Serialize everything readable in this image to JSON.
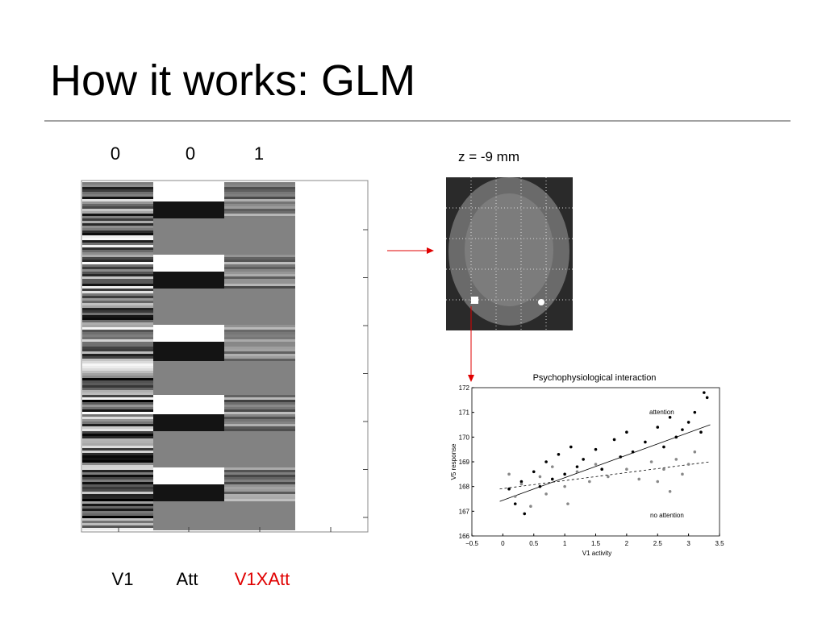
{
  "title": "How it works: GLM",
  "contrast": [
    0,
    0,
    1
  ],
  "regressors": [
    "V1",
    "Att",
    "V1XAtt"
  ],
  "slice_label": "z = -9 mm",
  "chart_data": {
    "type": "scatter",
    "title": "Psychophysiological interaction",
    "x_label": "V1 activity",
    "y_label": "V5 response",
    "xlim": [
      -0.5,
      3.5
    ],
    "ylim": [
      166,
      172
    ],
    "xticks": [
      {
        "value": -0.5,
        "label": "−0.5"
      },
      0,
      0.5,
      1,
      1.5,
      2,
      2.5,
      3,
      3.5
    ],
    "yticks": [
      166,
      167,
      168,
      169,
      170,
      171,
      172
    ],
    "series": [
      {
        "name": "attention",
        "color": "#000000",
        "x": [
          0.1,
          0.2,
          0.3,
          0.35,
          0.5,
          0.6,
          0.7,
          0.8,
          0.9,
          1.0,
          1.1,
          1.2,
          1.3,
          1.5,
          1.6,
          1.8,
          1.9,
          2.0,
          2.1,
          2.3,
          2.5,
          2.6,
          2.7,
          2.8,
          2.9,
          3.0,
          3.1,
          3.2,
          3.25,
          3.3
        ],
        "values": [
          167.9,
          167.3,
          168.2,
          166.9,
          168.6,
          168.0,
          169.0,
          168.3,
          169.3,
          168.5,
          169.6,
          168.8,
          169.1,
          169.5,
          168.7,
          169.9,
          169.2,
          170.2,
          169.4,
          169.8,
          170.4,
          169.6,
          170.8,
          170.0,
          170.3,
          170.6,
          171.0,
          170.2,
          171.8,
          171.6
        ],
        "trend": {
          "x": [
            -0.05,
            3.35
          ],
          "values": [
            167.4,
            170.5
          ],
          "dashed": false
        }
      },
      {
        "name": "no attention",
        "color": "#888888",
        "x": [
          0.1,
          0.2,
          0.3,
          0.45,
          0.6,
          0.7,
          0.8,
          1.0,
          1.05,
          1.2,
          1.4,
          1.5,
          1.7,
          2.0,
          2.2,
          2.4,
          2.5,
          2.6,
          2.7,
          2.8,
          2.9,
          3.0,
          3.1
        ],
        "values": [
          168.5,
          167.6,
          168.1,
          167.2,
          168.4,
          167.7,
          168.8,
          168.0,
          167.3,
          168.6,
          168.2,
          168.9,
          168.4,
          168.7,
          168.3,
          169.0,
          168.2,
          168.7,
          167.8,
          169.1,
          168.5,
          168.9,
          169.4
        ],
        "trend": {
          "x": [
            -0.05,
            3.35
          ],
          "values": [
            167.9,
            169.0
          ],
          "dashed": true
        }
      }
    ]
  }
}
